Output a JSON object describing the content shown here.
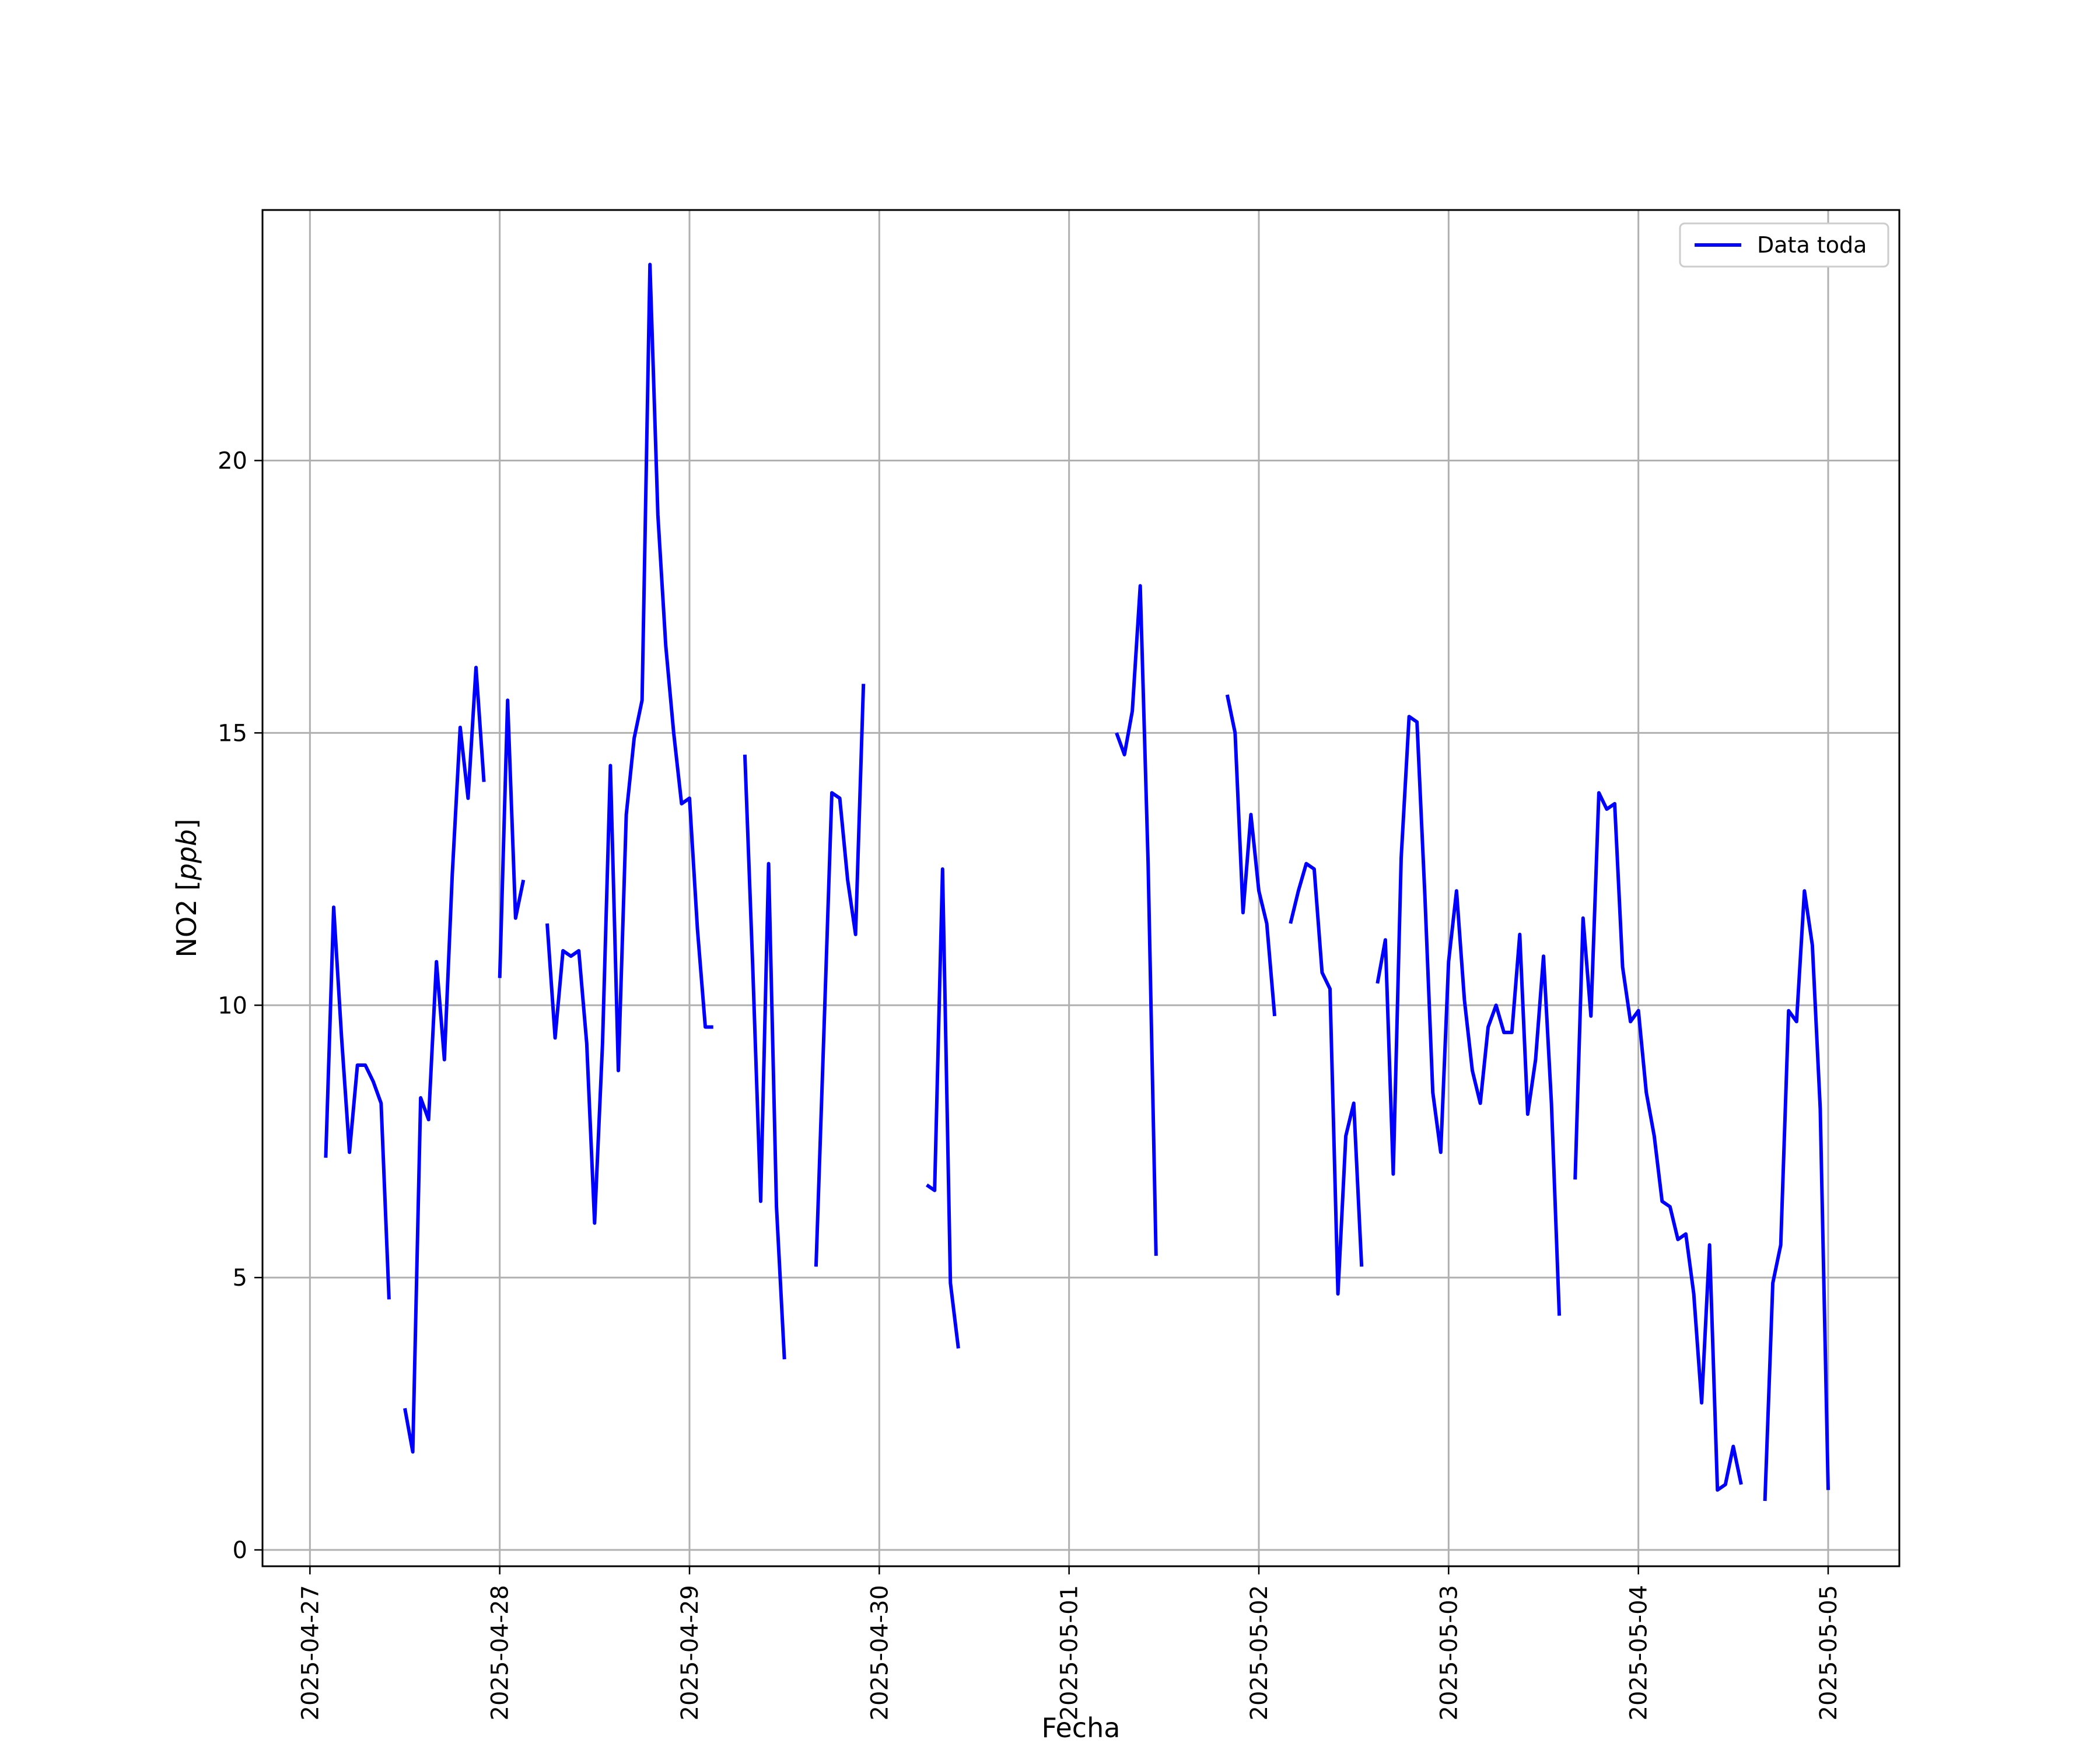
{
  "chart_data": {
    "type": "line",
    "title": "",
    "xlabel": "Fecha",
    "ylabel_prefix": "NO2 [",
    "ylabel_unit": "ppb",
    "ylabel_suffix": "]",
    "xlim": [
      "2025-04-26 18:00",
      "2025-05-05 09:00"
    ],
    "ylim": [
      -0.3,
      24.6
    ],
    "x_ticks": [
      "2025-04-27",
      "2025-04-28",
      "2025-04-29",
      "2025-04-30",
      "2025-05-01",
      "2025-05-02",
      "2025-05-03",
      "2025-05-04",
      "2025-05-05"
    ],
    "y_ticks": [
      0,
      5,
      10,
      15,
      20
    ],
    "grid": true,
    "legend_position": "top-right",
    "series": [
      {
        "name": "Data toda",
        "color": "#0000ff",
        "segments": [
          [
            [
              "2025-04-27 02:00",
              7.2
            ],
            [
              "2025-04-27 03:00",
              11.8
            ],
            [
              "2025-04-27 04:00",
              9.4
            ],
            [
              "2025-04-27 05:00",
              7.3
            ],
            [
              "2025-04-27 06:00",
              8.9
            ],
            [
              "2025-04-27 07:00",
              8.9
            ],
            [
              "2025-04-27 08:00",
              8.6
            ],
            [
              "2025-04-27 09:00",
              8.2
            ],
            [
              "2025-04-27 10:00",
              4.6
            ]
          ],
          [
            [
              "2025-04-27 12:00",
              2.6
            ],
            [
              "2025-04-27 13:00",
              1.8
            ],
            [
              "2025-04-27 14:00",
              8.3
            ],
            [
              "2025-04-27 15:00",
              7.9
            ],
            [
              "2025-04-27 16:00",
              10.8
            ],
            [
              "2025-04-27 17:00",
              9.0
            ],
            [
              "2025-04-27 18:00",
              12.4
            ],
            [
              "2025-04-27 19:00",
              15.1
            ],
            [
              "2025-04-27 20:00",
              13.8
            ],
            [
              "2025-04-27 21:00",
              16.2
            ],
            [
              "2025-04-27 22:00",
              14.1
            ]
          ],
          [
            [
              "2025-04-28 00:00",
              10.5
            ],
            [
              "2025-04-28 01:00",
              15.6
            ],
            [
              "2025-04-28 02:00",
              11.6
            ],
            [
              "2025-04-28 03:00",
              12.3
            ]
          ],
          [
            [
              "2025-04-28 06:00",
              11.5
            ],
            [
              "2025-04-28 07:00",
              9.4
            ],
            [
              "2025-04-28 08:00",
              11.0
            ],
            [
              "2025-04-28 09:00",
              10.9
            ],
            [
              "2025-04-28 10:00",
              11.0
            ],
            [
              "2025-04-28 11:00",
              9.3
            ],
            [
              "2025-04-28 12:00",
              6.0
            ],
            [
              "2025-04-28 13:00",
              9.3
            ],
            [
              "2025-04-28 14:00",
              14.4
            ],
            [
              "2025-04-28 15:00",
              8.8
            ],
            [
              "2025-04-28 16:00",
              13.5
            ],
            [
              "2025-04-28 17:00",
              14.9
            ],
            [
              "2025-04-28 18:00",
              15.6
            ],
            [
              "2025-04-28 19:00",
              23.6
            ],
            [
              "2025-04-28 20:00",
              19.0
            ],
            [
              "2025-04-28 21:00",
              16.6
            ],
            [
              "2025-04-28 22:00",
              15.0
            ],
            [
              "2025-04-28 23:00",
              13.7
            ],
            [
              "2025-04-29 00:00",
              13.8
            ],
            [
              "2025-04-29 01:00",
              11.4
            ],
            [
              "2025-04-29 02:00",
              9.6
            ],
            [
              "2025-04-29 03:00",
              9.6
            ]
          ],
          [
            [
              "2025-04-29 07:00",
              14.6
            ],
            [
              "2025-04-29 08:00",
              10.7
            ],
            [
              "2025-04-29 09:00",
              6.4
            ],
            [
              "2025-04-29 10:00",
              12.6
            ],
            [
              "2025-04-29 11:00",
              6.3
            ],
            [
              "2025-04-29 12:00",
              3.5
            ]
          ],
          [
            [
              "2025-04-29 16:00",
              5.2
            ],
            [
              "2025-04-29 17:00",
              9.5
            ],
            [
              "2025-04-29 18:00",
              13.9
            ],
            [
              "2025-04-29 19:00",
              13.8
            ],
            [
              "2025-04-29 20:00",
              12.3
            ],
            [
              "2025-04-29 21:00",
              11.3
            ],
            [
              "2025-04-29 22:00",
              15.9
            ]
          ],
          [
            [
              "2025-04-30 06:00",
              6.7
            ],
            [
              "2025-04-30 07:00",
              6.6
            ],
            [
              "2025-04-30 08:00",
              12.5
            ],
            [
              "2025-04-30 09:00",
              4.9
            ],
            [
              "2025-04-30 10:00",
              3.7
            ]
          ],
          [
            [
              "2025-05-01 06:00",
              15.0
            ],
            [
              "2025-05-01 07:00",
              14.6
            ],
            [
              "2025-05-01 08:00",
              15.4
            ],
            [
              "2025-05-01 09:00",
              17.7
            ],
            [
              "2025-05-01 10:00",
              12.6
            ],
            [
              "2025-05-01 11:00",
              5.4
            ]
          ],
          [
            [
              "2025-05-01 20:00",
              15.7
            ],
            [
              "2025-05-01 21:00",
              15.0
            ],
            [
              "2025-05-01 22:00",
              11.7
            ],
            [
              "2025-05-01 23:00",
              13.5
            ],
            [
              "2025-05-02 00:00",
              12.1
            ],
            [
              "2025-05-02 01:00",
              11.5
            ],
            [
              "2025-05-02 02:00",
              9.8
            ]
          ],
          [
            [
              "2025-05-02 04:00",
              11.5
            ],
            [
              "2025-05-02 05:00",
              12.1
            ],
            [
              "2025-05-02 06:00",
              12.6
            ],
            [
              "2025-05-02 07:00",
              12.5
            ],
            [
              "2025-05-02 08:00",
              10.6
            ],
            [
              "2025-05-02 09:00",
              10.3
            ],
            [
              "2025-05-02 10:00",
              4.7
            ],
            [
              "2025-05-02 11:00",
              7.6
            ],
            [
              "2025-05-02 12:00",
              8.2
            ],
            [
              "2025-05-02 13:00",
              5.2
            ]
          ],
          [
            [
              "2025-05-02 15:00",
              10.4
            ],
            [
              "2025-05-02 16:00",
              11.2
            ],
            [
              "2025-05-02 17:00",
              6.9
            ],
            [
              "2025-05-02 18:00",
              12.7
            ],
            [
              "2025-05-02 19:00",
              15.3
            ],
            [
              "2025-05-02 20:00",
              15.2
            ],
            [
              "2025-05-02 21:00",
              12.0
            ],
            [
              "2025-05-02 22:00",
              8.4
            ],
            [
              "2025-05-02 23:00",
              7.3
            ],
            [
              "2025-05-03 00:00",
              10.8
            ],
            [
              "2025-05-03 01:00",
              12.1
            ],
            [
              "2025-05-03 02:00",
              10.1
            ],
            [
              "2025-05-03 03:00",
              8.8
            ],
            [
              "2025-05-03 04:00",
              8.2
            ],
            [
              "2025-05-03 05:00",
              9.6
            ],
            [
              "2025-05-03 06:00",
              10.0
            ],
            [
              "2025-05-03 07:00",
              9.5
            ],
            [
              "2025-05-03 08:00",
              9.5
            ],
            [
              "2025-05-03 09:00",
              11.3
            ],
            [
              "2025-05-03 10:00",
              8.0
            ],
            [
              "2025-05-03 11:00",
              9.0
            ],
            [
              "2025-05-03 12:00",
              10.9
            ],
            [
              "2025-05-03 13:00",
              8.2
            ],
            [
              "2025-05-03 14:00",
              4.3
            ]
          ],
          [
            [
              "2025-05-03 16:00",
              6.8
            ],
            [
              "2025-05-03 17:00",
              11.6
            ],
            [
              "2025-05-03 18:00",
              9.8
            ],
            [
              "2025-05-03 19:00",
              13.9
            ],
            [
              "2025-05-03 20:00",
              13.6
            ],
            [
              "2025-05-03 21:00",
              13.7
            ],
            [
              "2025-05-03 22:00",
              10.7
            ],
            [
              "2025-05-03 23:00",
              9.7
            ],
            [
              "2025-05-04 00:00",
              9.9
            ],
            [
              "2025-05-04 01:00",
              8.4
            ],
            [
              "2025-05-04 02:00",
              7.6
            ],
            [
              "2025-05-04 03:00",
              6.4
            ],
            [
              "2025-05-04 04:00",
              6.3
            ],
            [
              "2025-05-04 05:00",
              5.7
            ],
            [
              "2025-05-04 06:00",
              5.8
            ],
            [
              "2025-05-04 07:00",
              4.7
            ],
            [
              "2025-05-04 08:00",
              2.7
            ],
            [
              "2025-05-04 09:00",
              5.6
            ],
            [
              "2025-05-04 10:00",
              1.1
            ],
            [
              "2025-05-04 11:00",
              1.2
            ],
            [
              "2025-05-04 12:00",
              1.9
            ],
            [
              "2025-05-04 13:00",
              1.2
            ]
          ],
          [
            [
              "2025-05-04 16:00",
              0.9
            ],
            [
              "2025-05-04 17:00",
              4.9
            ],
            [
              "2025-05-04 18:00",
              5.6
            ],
            [
              "2025-05-04 19:00",
              9.9
            ],
            [
              "2025-05-04 20:00",
              9.7
            ],
            [
              "2025-05-04 21:00",
              12.1
            ],
            [
              "2025-05-04 22:00",
              11.1
            ],
            [
              "2025-05-04 23:00",
              8.1
            ],
            [
              "2025-05-05 00:00",
              1.1
            ]
          ]
        ]
      }
    ]
  }
}
